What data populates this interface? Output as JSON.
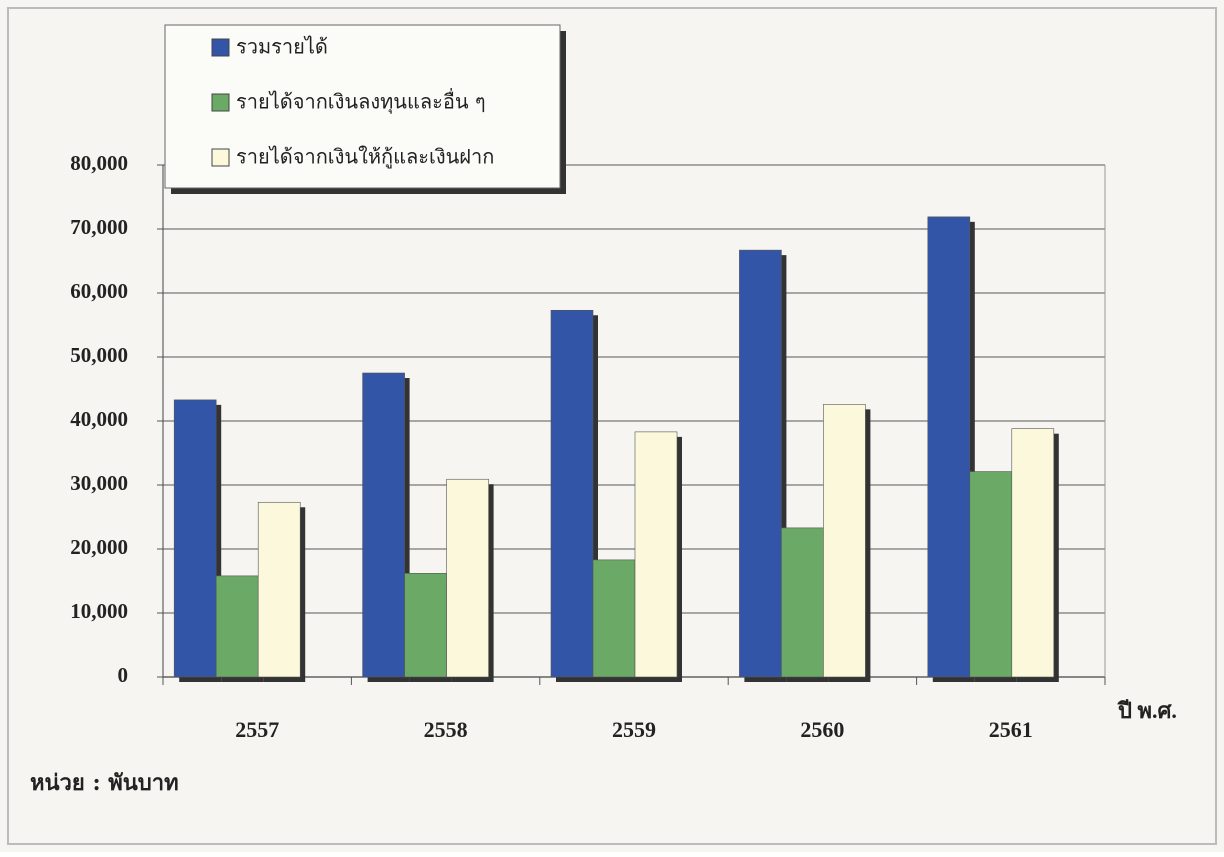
{
  "chart_data": {
    "type": "bar",
    "categories": [
      "2557",
      "2558",
      "2559",
      "2560",
      "2561"
    ],
    "series": [
      {
        "name": "รวมรายได้",
        "color": "#3355a8",
        "values": [
          43300,
          47500,
          57300,
          66700,
          71900
        ]
      },
      {
        "name": "รายได้จากเงินลงทุนและอื่น ๆ",
        "color": "#6aaa66",
        "values": [
          15800,
          16200,
          18300,
          23300,
          32100
        ]
      },
      {
        "name": "รายได้จากเงินให้กู้และเงินฝาก",
        "color": "#fbf8dc",
        "values": [
          27300,
          30900,
          38300,
          42600,
          38800
        ]
      }
    ],
    "ylim": [
      0,
      80000
    ],
    "yticks": [
      0,
      {
        "value": 10000,
        "label": "10,000"
      },
      {
        "value": 20000,
        "label": "20,000"
      },
      {
        "value": 30000,
        "label": "30,000"
      },
      {
        "value": 40000,
        "label": "40,000"
      },
      {
        "value": 50000,
        "label": "50,000"
      },
      {
        "value": 60000,
        "label": "60,000"
      },
      {
        "value": 70000,
        "label": "70,000"
      },
      {
        "value": 80000,
        "label": "80,000"
      }
    ],
    "xlabel": "ปี พ.ศ.",
    "note": "หน่วย : พันบาท",
    "grid": true
  }
}
